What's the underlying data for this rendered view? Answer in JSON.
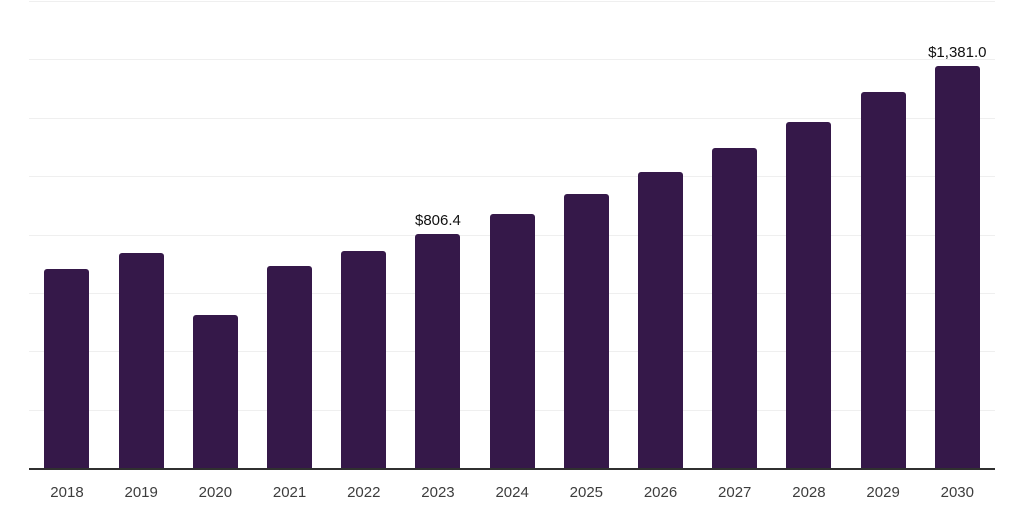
{
  "chart_data": {
    "type": "bar",
    "title": "",
    "xlabel": "",
    "ylabel": "",
    "categories": [
      "2018",
      "2019",
      "2020",
      "2021",
      "2022",
      "2023",
      "2024",
      "2025",
      "2026",
      "2027",
      "2028",
      "2029",
      "2030"
    ],
    "values": [
      686,
      741,
      527,
      694,
      748,
      806.4,
      873,
      943,
      1018,
      1099,
      1190,
      1291,
      1381
    ],
    "labeled_points": [
      {
        "index": 5,
        "text": "$806.4"
      },
      {
        "index": 12,
        "text": "$1,381.0"
      }
    ],
    "ylim": [
      0,
      1600
    ],
    "gridline_step": 200,
    "grid": "horizontal",
    "legend_position": "none",
    "y_axis_tick_labels_visible": false
  },
  "style": {
    "bar_color": "#351849",
    "gridline_color": "#efefef",
    "axis_line_color": "#303030",
    "tick_label_color": "#3d3d3d",
    "data_label_color": "#111111",
    "background_color": "#ffffff"
  }
}
